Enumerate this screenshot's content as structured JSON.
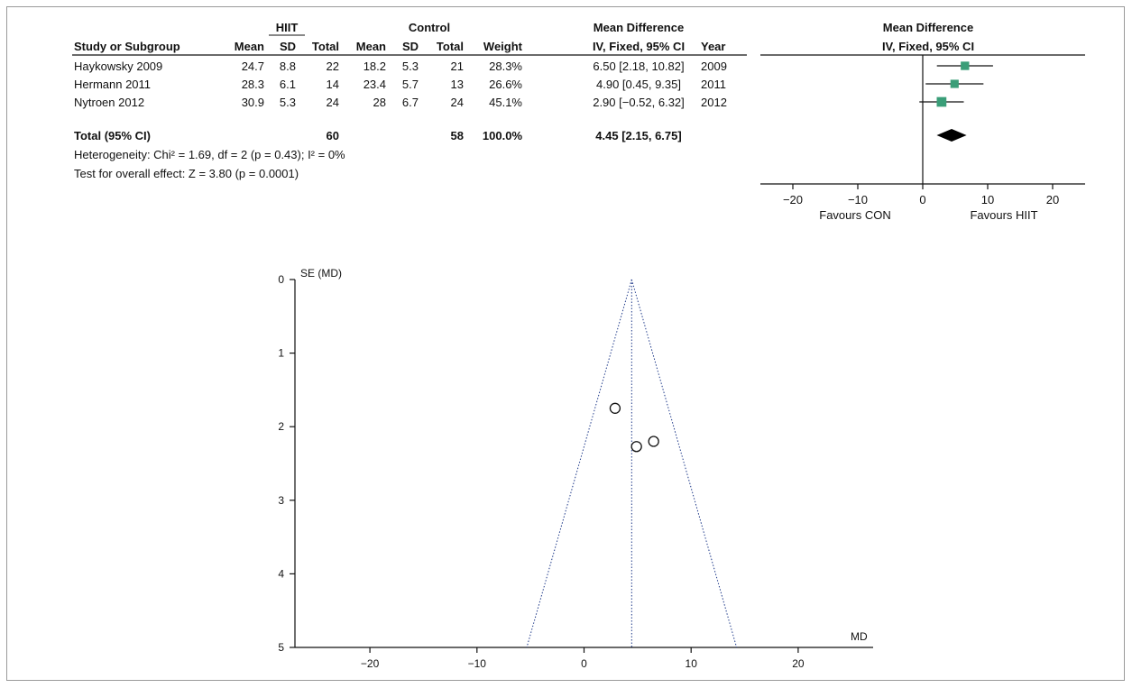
{
  "chart_data": [
    {
      "type": "table",
      "columns": {
        "group_hiit": "HIIT",
        "group_control": "Control",
        "group_md": "Mean Difference",
        "study": "Study or Subgroup",
        "mean": "Mean",
        "sd": "SD",
        "total": "Total",
        "weight": "Weight",
        "ci": "IV, Fixed, 95% CI",
        "year": "Year"
      },
      "rows": [
        {
          "study": "Haykowsky 2009",
          "hiit_mean": "24.7",
          "hiit_sd": "8.8",
          "hiit_total": "22",
          "con_mean": "18.2",
          "con_sd": "5.3",
          "con_total": "21",
          "weight": "28.3%",
          "ci": "6.50 [2.18, 10.82]",
          "year": "2009"
        },
        {
          "study": "Hermann 2011",
          "hiit_mean": "28.3",
          "hiit_sd": "6.1",
          "hiit_total": "14",
          "con_mean": "23.4",
          "con_sd": "5.7",
          "con_total": "13",
          "weight": "26.6%",
          "ci": "4.90 [0.45, 9.35]",
          "year": "2011"
        },
        {
          "study": "Nytroen 2012",
          "hiit_mean": "30.9",
          "hiit_sd": "5.3",
          "hiit_total": "24",
          "con_mean": "28",
          "con_sd": "6.7",
          "con_total": "24",
          "weight": "45.1%",
          "ci": "2.90 [−0.52, 6.32]",
          "year": "2012"
        }
      ],
      "total_row": {
        "label": "Total (95% CI)",
        "hiit_total": "60",
        "con_total": "58",
        "weight": "100.0%",
        "ci": "4.45 [2.15, 6.75]"
      },
      "heterogeneity": "Heterogeneity: Chi² = 1.69, df = 2 (p = 0.43); I² = 0%",
      "overall_effect": "Test for overall effect: Z = 3.80 (p = 0.0001)"
    },
    {
      "type": "forest",
      "title_line1": "Mean Difference",
      "title_line2": "IV, Fixed, 95% CI",
      "studies": [
        {
          "md": 6.5,
          "lo": 2.18,
          "hi": 10.82,
          "weight": 28.3
        },
        {
          "md": 4.9,
          "lo": 0.45,
          "hi": 9.35,
          "weight": 26.6
        },
        {
          "md": 2.9,
          "lo": -0.52,
          "hi": 6.32,
          "weight": 45.1
        }
      ],
      "pooled": {
        "md": 4.45,
        "lo": 2.15,
        "hi": 6.75
      },
      "xlim": [
        -25,
        25
      ],
      "ticks": [
        -20,
        -10,
        0,
        10,
        20
      ],
      "tick_labels": [
        "−20",
        "−10",
        "0",
        "10",
        "20"
      ],
      "favours_left": "Favours CON",
      "favours_right": "Favours HIIT",
      "marker_color": "#3a9e78"
    },
    {
      "type": "scatter",
      "ylabel": "SE (MD)",
      "xlabel": "MD",
      "points": [
        {
          "x": 2.9,
          "y": 1.75
        },
        {
          "x": 4.9,
          "y": 2.27
        },
        {
          "x": 6.5,
          "y": 2.2
        }
      ],
      "pooled_md": 4.45,
      "funnel_bottom_se": 5,
      "xlim": [
        -27,
        27
      ],
      "ylim": [
        0,
        5
      ],
      "x_ticks": [
        -20,
        -10,
        0,
        10,
        20
      ],
      "x_tick_labels": [
        "−20",
        "−10",
        "0",
        "10",
        "20"
      ],
      "y_ticks": [
        0,
        1,
        2,
        3,
        4,
        5
      ],
      "y_tick_labels": [
        "0",
        "1",
        "2",
        "3",
        "4",
        "5"
      ],
      "line_color": "#1f3a8a"
    }
  ]
}
